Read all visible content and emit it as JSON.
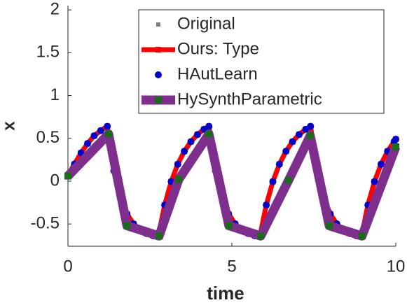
{
  "chart_data": {
    "type": "line",
    "xlabel": "time",
    "ylabel": "x",
    "x": [
      0,
      0.2,
      0.4,
      0.6,
      0.8,
      1.0,
      1.2,
      1.4,
      1.6,
      1.8,
      2.0,
      2.2,
      2.4,
      2.6,
      2.75,
      2.95,
      3.15,
      3.35,
      3.55,
      3.75,
      3.95,
      4.15,
      4.3,
      4.5,
      4.7,
      4.9,
      5.1,
      5.3,
      5.5,
      5.7,
      5.85,
      6.05,
      6.25,
      6.45,
      6.65,
      6.85,
      7.05,
      7.25,
      7.4,
      7.6,
      7.8,
      8.0,
      8.2,
      8.4,
      8.6,
      8.8,
      8.95,
      9.15,
      9.35,
      9.55,
      9.75,
      9.95,
      10
    ],
    "series": [
      {
        "name": "Original",
        "color": "#808080",
        "marker": "square",
        "values": [
          0.07,
          0.2,
          0.33,
          0.44,
          0.53,
          0.59,
          0.64,
          0.122,
          -0.193,
          -0.383,
          -0.499,
          -0.569,
          -0.612,
          -0.638,
          -0.65,
          -0.279,
          -0.005,
          0.198,
          0.349,
          0.461,
          0.544,
          0.605,
          0.64,
          0.122,
          -0.193,
          -0.383,
          -0.499,
          -0.569,
          -0.612,
          -0.638,
          -0.65,
          -0.279,
          -0.005,
          0.198,
          0.349,
          0.461,
          0.544,
          0.605,
          0.64,
          0.122,
          -0.193,
          -0.383,
          -0.499,
          -0.569,
          -0.612,
          -0.638,
          -0.65,
          -0.279,
          -0.005,
          0.198,
          0.349,
          0.461,
          0.49
        ]
      },
      {
        "name": "Ours: Type",
        "color": "#ff0000",
        "marker": "square",
        "values": [
          0.07,
          0.2,
          0.33,
          0.44,
          0.53,
          0.59,
          0.64,
          0.122,
          -0.193,
          -0.383,
          -0.499,
          -0.569,
          -0.612,
          -0.638,
          -0.65,
          -0.279,
          -0.005,
          0.198,
          0.349,
          0.461,
          0.544,
          0.605,
          0.64,
          0.122,
          -0.193,
          -0.383,
          -0.499,
          -0.569,
          -0.612,
          -0.638,
          -0.65,
          -0.279,
          -0.005,
          0.198,
          0.349,
          0.461,
          0.544,
          0.605,
          0.64,
          0.122,
          -0.193,
          -0.383,
          -0.499,
          -0.569,
          -0.612,
          -0.638,
          -0.65,
          -0.279,
          -0.005,
          0.198,
          0.349,
          0.461,
          0.49
        ]
      },
      {
        "name": "HAutLearn",
        "color": "#0000cc",
        "marker": "circle",
        "values": [
          0.07,
          0.2,
          0.33,
          0.44,
          0.53,
          0.59,
          0.64,
          0.122,
          -0.193,
          -0.383,
          -0.499,
          -0.569,
          -0.612,
          -0.638,
          -0.65,
          -0.279,
          -0.005,
          0.198,
          0.349,
          0.461,
          0.544,
          0.605,
          0.64,
          0.122,
          -0.193,
          -0.383,
          -0.499,
          -0.569,
          -0.612,
          -0.638,
          -0.65,
          -0.279,
          -0.005,
          0.198,
          0.349,
          0.461,
          0.544,
          0.605,
          0.64,
          0.122,
          -0.193,
          -0.383,
          -0.499,
          -0.569,
          -0.612,
          -0.638,
          -0.65,
          -0.279,
          -0.005,
          0.198,
          0.349,
          0.461,
          0.49
        ]
      },
      {
        "name": "HySynthParametric",
        "color": "#7e2f8e",
        "marker_color": "#1a6b1a",
        "marker": "square",
        "x": [
          0,
          1.24,
          1.8,
          2.78,
          3.38,
          4.3,
          4.91,
          5.88,
          6.73,
          7.39,
          7.97,
          8.97,
          10
        ],
        "values": [
          0.06,
          0.55,
          -0.52,
          -0.64,
          0.02,
          0.55,
          -0.52,
          -0.64,
          0.01,
          0.53,
          -0.52,
          -0.64,
          0.4
        ]
      }
    ],
    "xlim": [
      0,
      10
    ],
    "xticks": [
      0,
      5,
      10
    ],
    "ylim": [
      -0.76,
      2.05
    ],
    "yticks": [
      -0.5,
      0,
      0.5,
      1,
      1.5,
      2
    ],
    "legend": "top-right"
  }
}
